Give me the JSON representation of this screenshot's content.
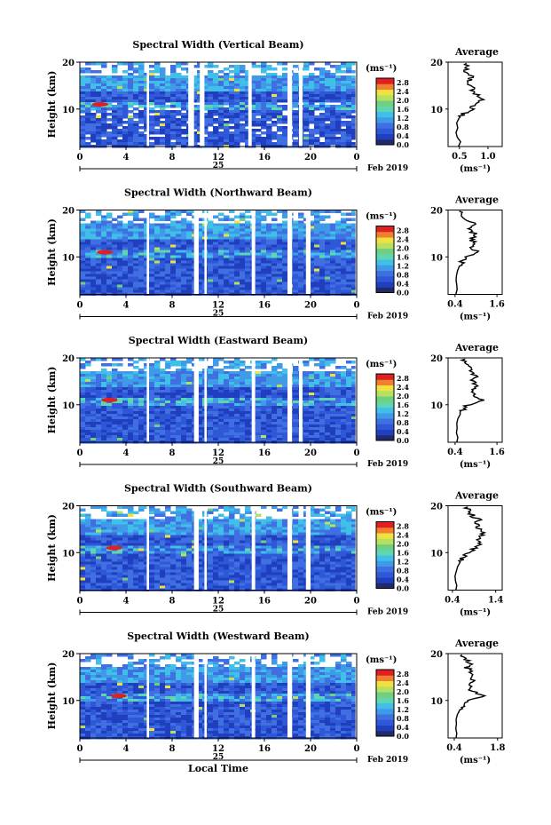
{
  "figure": {
    "x_axis_title": "Local Time",
    "y_axis_title": "Height (km)",
    "colorbar_unit": "(ms⁻¹)",
    "date_day": "25",
    "date_month_year": "Feb 2019"
  },
  "colors": {
    "background_gap": "#ffffff",
    "dark_blue": "#1f3fbf",
    "blue": "#3f6fe0",
    "cyan": "#40c0e8",
    "green": "#70d080",
    "yellow": "#f0e040",
    "red": "#e02020"
  },
  "chart_data": [
    {
      "type": "heatmap",
      "title": "Spectral Width (Vertical Beam)",
      "xlabel": "",
      "ylabel": "Height (km)",
      "x_ticks": [
        "0",
        "4",
        "8",
        "12",
        "16",
        "20",
        "0"
      ],
      "y_ticks": [
        "10",
        "20"
      ],
      "xlim": [
        0,
        24
      ],
      "ylim": [
        2,
        20
      ],
      "colorbar": {
        "ticks": [
          "0.0",
          "0.4",
          "0.8",
          "1.2",
          "1.6",
          "2.0",
          "2.4",
          "2.8"
        ],
        "range": [
          0.0,
          3.0
        ]
      },
      "data_gaps_hours": [
        [
          5.8,
          6.0
        ],
        [
          9.4,
          9.9
        ],
        [
          10.4,
          10.8
        ],
        [
          14.6,
          14.9
        ],
        [
          18.0,
          18.4
        ],
        [
          19.0,
          19.3
        ],
        [
          23.9,
          24.0
        ]
      ],
      "average_profile": {
        "title": "Average",
        "xlabel": "(ms⁻¹)",
        "x_ticks": [
          "0.5",
          "1.0"
        ],
        "y_ticks": [
          "10",
          "20"
        ],
        "xlim": [
          0.3,
          1.25
        ],
        "ylim": [
          2,
          20
        ],
        "height_km": [
          2,
          3,
          4,
          5,
          6,
          7,
          8,
          9,
          10,
          11,
          12,
          13,
          14,
          15,
          16,
          17,
          18,
          19,
          20
        ],
        "width_ms": [
          0.48,
          0.52,
          0.46,
          0.44,
          0.47,
          0.45,
          0.49,
          0.58,
          0.72,
          0.76,
          0.88,
          0.8,
          0.74,
          0.7,
          0.66,
          0.72,
          0.62,
          0.65,
          0.58
        ]
      }
    },
    {
      "type": "heatmap",
      "title": "Spectral Width (Northward Beam)",
      "xlabel": "",
      "ylabel": "Height (km)",
      "x_ticks": [
        "0",
        "4",
        "8",
        "12",
        "16",
        "20",
        "0"
      ],
      "y_ticks": [
        "10",
        "20"
      ],
      "xlim": [
        0,
        24
      ],
      "ylim": [
        2,
        20
      ],
      "colorbar": {
        "ticks": [
          "0.0",
          "0.4",
          "0.8",
          "1.2",
          "1.6",
          "2.0",
          "2.4",
          "2.8"
        ],
        "range": [
          0.0,
          3.0
        ]
      },
      "data_gaps_hours": [
        [
          5.8,
          6.0
        ],
        [
          9.9,
          10.3
        ],
        [
          10.8,
          11.0
        ],
        [
          14.9,
          15.2
        ],
        [
          18.0,
          18.4
        ],
        [
          19.6,
          20.0
        ],
        [
          23.9,
          24.0
        ]
      ],
      "average_profile": {
        "title": "Average",
        "xlabel": "(ms⁻¹)",
        "x_ticks": [
          "0.4",
          "1.6"
        ],
        "y_ticks": [
          "10",
          "20"
        ],
        "xlim": [
          0.2,
          1.75
        ],
        "ylim": [
          2,
          20
        ],
        "height_km": [
          2,
          3,
          4,
          5,
          6,
          7,
          8,
          9,
          10,
          11,
          12,
          13,
          14,
          15,
          16,
          17,
          18,
          19,
          20
        ],
        "width_ms": [
          0.42,
          0.46,
          0.45,
          0.43,
          0.44,
          0.47,
          0.52,
          0.6,
          0.72,
          1.05,
          0.86,
          0.92,
          0.88,
          0.95,
          0.82,
          0.96,
          0.74,
          0.64,
          0.55
        ]
      }
    },
    {
      "type": "heatmap",
      "title": "Spectral Width (Eastward Beam)",
      "xlabel": "",
      "ylabel": "Height (km)",
      "x_ticks": [
        "0",
        "4",
        "8",
        "12",
        "16",
        "20",
        "0"
      ],
      "y_ticks": [
        "10",
        "20"
      ],
      "xlim": [
        0,
        24
      ],
      "ylim": [
        2,
        20
      ],
      "colorbar": {
        "ticks": [
          "0.0",
          "0.4",
          "0.8",
          "1.2",
          "1.6",
          "2.0",
          "2.4",
          "2.8"
        ],
        "range": [
          0.0,
          3.0
        ]
      },
      "data_gaps_hours": [
        [
          5.8,
          6.0
        ],
        [
          9.9,
          10.3
        ],
        [
          10.8,
          11.0
        ],
        [
          14.9,
          15.2
        ],
        [
          18.0,
          18.4
        ],
        [
          19.0,
          19.3
        ],
        [
          23.9,
          24.0
        ]
      ],
      "average_profile": {
        "title": "Average",
        "xlabel": "(ms⁻¹)",
        "x_ticks": [
          "0.4",
          "1.6"
        ],
        "y_ticks": [
          "10",
          "20"
        ],
        "xlim": [
          0.2,
          1.75
        ],
        "ylim": [
          2,
          20
        ],
        "height_km": [
          2,
          3,
          4,
          5,
          6,
          7,
          8,
          9,
          10,
          11,
          12,
          13,
          14,
          15,
          16,
          17,
          18,
          19,
          20
        ],
        "width_ms": [
          0.45,
          0.48,
          0.44,
          0.46,
          0.45,
          0.48,
          0.55,
          0.62,
          0.78,
          1.18,
          0.88,
          0.96,
          1.02,
          0.92,
          0.98,
          0.84,
          0.8,
          0.7,
          0.62
        ]
      }
    },
    {
      "type": "heatmap",
      "title": "Spectral Width (Southward Beam)",
      "xlabel": "",
      "ylabel": "Height (km)",
      "x_ticks": [
        "0",
        "4",
        "8",
        "12",
        "16",
        "20",
        "0"
      ],
      "y_ticks": [
        "10",
        "20"
      ],
      "xlim": [
        0,
        24
      ],
      "ylim": [
        2,
        20
      ],
      "colorbar": {
        "ticks": [
          "0.0",
          "0.4",
          "0.8",
          "1.2",
          "1.6",
          "2.0",
          "2.4",
          "2.8"
        ],
        "range": [
          0.0,
          3.0
        ]
      },
      "data_gaps_hours": [
        [
          5.8,
          6.0
        ],
        [
          9.9,
          10.3
        ],
        [
          10.8,
          11.0
        ],
        [
          14.9,
          15.2
        ],
        [
          18.0,
          18.4
        ],
        [
          19.6,
          20.0
        ],
        [
          23.9,
          24.0
        ]
      ],
      "average_profile": {
        "title": "Average",
        "xlabel": "(ms⁻¹)",
        "x_ticks": [
          "0.4",
          "1.4"
        ],
        "y_ticks": [
          "10",
          "20"
        ],
        "xlim": [
          0.3,
          1.55
        ],
        "ylim": [
          2,
          20
        ],
        "height_km": [
          2,
          3,
          4,
          5,
          6,
          7,
          8,
          9,
          10,
          11,
          12,
          13,
          14,
          15,
          16,
          17,
          18,
          19,
          20
        ],
        "width_ms": [
          0.48,
          0.5,
          0.47,
          0.46,
          0.49,
          0.52,
          0.58,
          0.66,
          0.74,
          0.95,
          1.05,
          0.98,
          1.1,
          1.02,
          0.96,
          1.0,
          0.85,
          0.8,
          0.7
        ]
      }
    },
    {
      "type": "heatmap",
      "title": "Spectral Width (Westward Beam)",
      "xlabel": "Local Time",
      "ylabel": "Height (km)",
      "x_ticks": [
        "0",
        "4",
        "8",
        "12",
        "16",
        "20",
        "0"
      ],
      "y_ticks": [
        "10",
        "20"
      ],
      "xlim": [
        0,
        24
      ],
      "ylim": [
        2,
        20
      ],
      "colorbar": {
        "ticks": [
          "0.0",
          "0.4",
          "0.8",
          "1.2",
          "1.6",
          "2.0",
          "2.4",
          "2.8"
        ],
        "range": [
          0.0,
          3.0
        ]
      },
      "data_gaps_hours": [
        [
          5.8,
          6.0
        ],
        [
          9.9,
          10.3
        ],
        [
          10.8,
          11.0
        ],
        [
          14.9,
          15.2
        ],
        [
          18.0,
          18.4
        ],
        [
          19.6,
          20.0
        ],
        [
          23.9,
          24.0
        ]
      ],
      "average_profile": {
        "title": "Average",
        "xlabel": "(ms⁻¹)",
        "x_ticks": [
          "0.4",
          "1.8"
        ],
        "y_ticks": [
          "10",
          "20"
        ],
        "xlim": [
          0.2,
          1.95
        ],
        "ylim": [
          2,
          20
        ],
        "height_km": [
          2,
          3,
          4,
          5,
          6,
          7,
          8,
          9,
          10,
          11,
          12,
          13,
          14,
          15,
          16,
          17,
          18,
          19,
          20
        ],
        "width_ms": [
          0.46,
          0.48,
          0.45,
          0.47,
          0.46,
          0.5,
          0.58,
          0.66,
          0.8,
          1.35,
          0.96,
          0.9,
          1.05,
          0.88,
          0.94,
          0.82,
          0.9,
          0.7,
          0.6
        ]
      }
    }
  ]
}
